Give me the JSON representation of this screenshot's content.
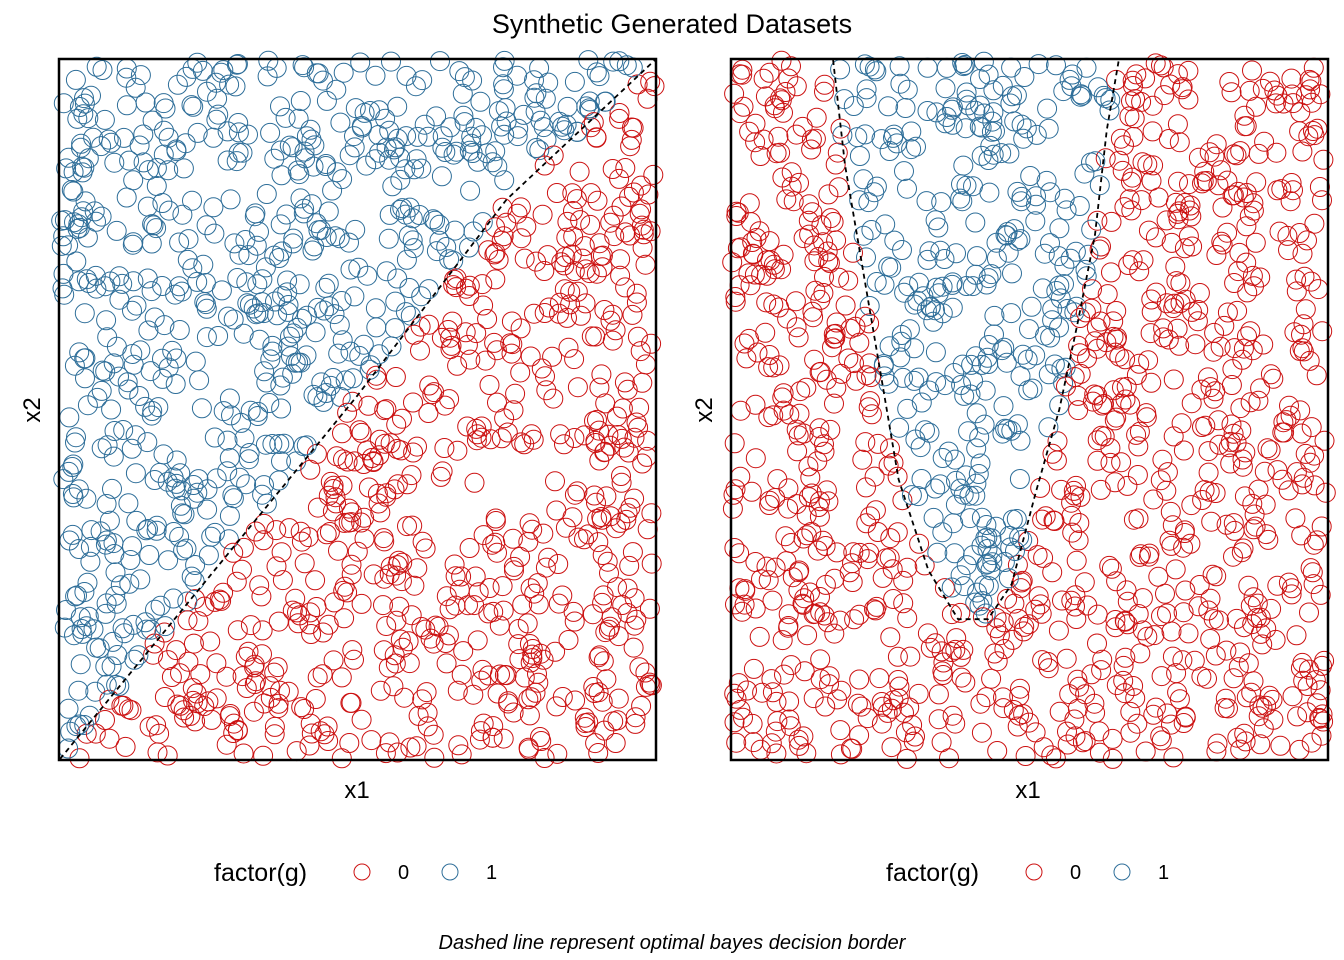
{
  "figure": {
    "title": "Synthetic Generated Datasets",
    "caption": "Dashed line represent optimal bayes decision border"
  },
  "colors": {
    "class0": "#CC1111",
    "class1": "#2E6E99"
  },
  "chart_data": [
    {
      "type": "scatter",
      "xlabel": "x1",
      "ylabel": "x2",
      "xlim": [
        0,
        1
      ],
      "ylim": [
        0,
        1
      ],
      "grid": false,
      "legend": {
        "title": "factor(g)",
        "entries": [
          "0",
          "1"
        ],
        "placement": "bottom"
      },
      "series": [
        {
          "name": "0",
          "color": "#CC1111",
          "n_points": 650,
          "rule": "x2 < x1"
        },
        {
          "name": "1",
          "color": "#2E6E99",
          "n_points": 650,
          "rule": "x2 >= x1"
        }
      ],
      "decision_border": {
        "style": "dashed",
        "points": [
          [
            0,
            0
          ],
          [
            0.25,
            0.26
          ],
          [
            0.5,
            0.52
          ],
          [
            0.75,
            0.8
          ],
          [
            1,
            1
          ]
        ]
      }
    },
    {
      "type": "scatter",
      "xlabel": "x1",
      "ylabel": "x2",
      "xlim": [
        0,
        1
      ],
      "ylim": [
        0,
        1
      ],
      "grid": false,
      "legend": {
        "title": "factor(g)",
        "entries": [
          "0",
          "1"
        ],
        "placement": "bottom"
      },
      "series": [
        {
          "name": "0",
          "color": "#CC1111",
          "n_points": 1050,
          "rule": "outside border"
        },
        {
          "name": "1",
          "color": "#2E6E99",
          "n_points": 250,
          "rule": "inside border"
        }
      ],
      "decision_border": {
        "style": "dashed",
        "left": [
          [
            0.17,
            1.0
          ],
          [
            0.19,
            0.85
          ],
          [
            0.22,
            0.7
          ],
          [
            0.25,
            0.55
          ],
          [
            0.28,
            0.4
          ],
          [
            0.33,
            0.27
          ],
          [
            0.38,
            0.2
          ],
          [
            0.43,
            0.2
          ]
        ],
        "right": [
          [
            0.43,
            0.2
          ],
          [
            0.47,
            0.25
          ],
          [
            0.51,
            0.38
          ],
          [
            0.55,
            0.5
          ],
          [
            0.58,
            0.62
          ],
          [
            0.61,
            0.75
          ],
          [
            0.63,
            0.9
          ],
          [
            0.65,
            1.0
          ]
        ]
      }
    }
  ]
}
